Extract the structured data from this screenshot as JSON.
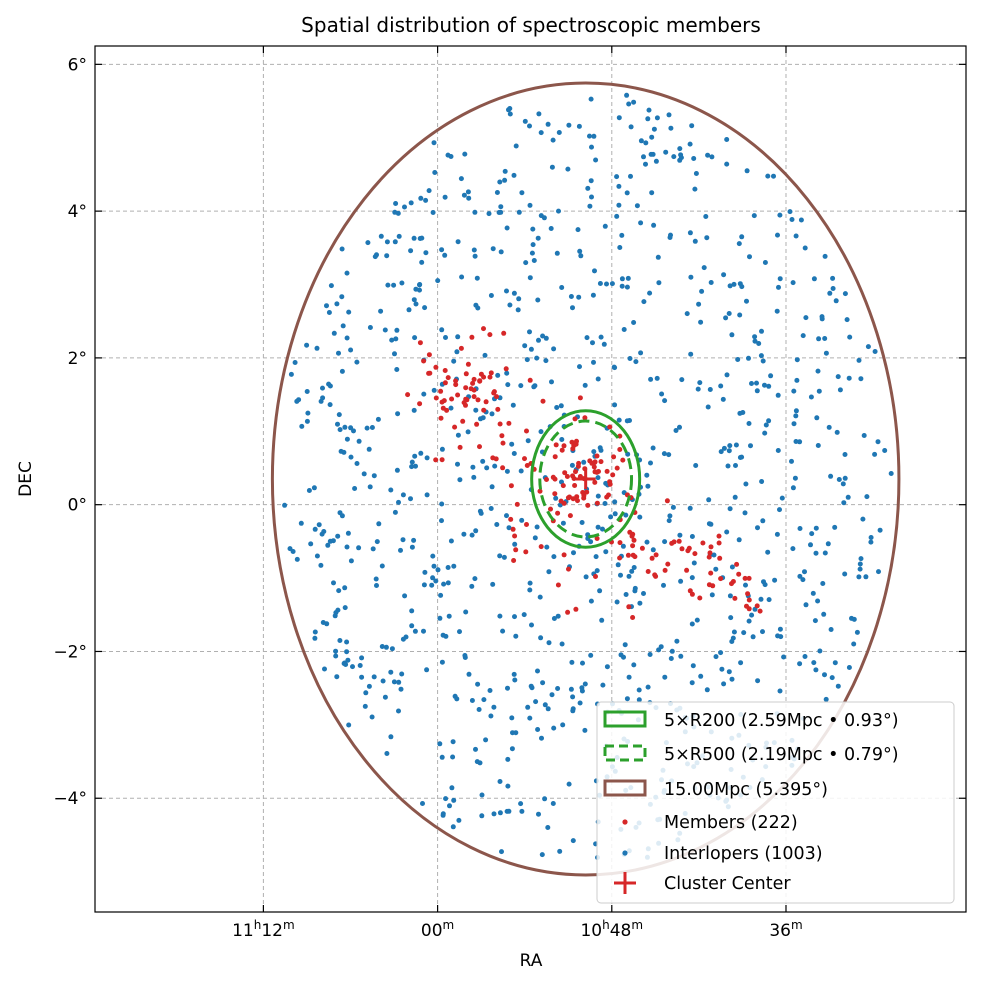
{
  "chart_data": {
    "type": "scatter",
    "title": "Spatial distribution of spectroscopic members",
    "xlabel": "RA",
    "ylabel": "DEC",
    "xlim_deg": [
      170.9,
      155.9
    ],
    "ylim_deg": [
      -5.55,
      6.25
    ],
    "x_ticks": [
      {
        "value": 168.0,
        "label": "11",
        "unit": "h",
        "minutes": "12",
        "munit": "m"
      },
      {
        "value": 165.0,
        "label": "00",
        "unit": "",
        "minutes": "",
        "munit": "m"
      },
      {
        "value": 162.0,
        "label": "10",
        "unit": "h",
        "minutes": "48",
        "munit": "m"
      },
      {
        "value": 159.0,
        "label": "36",
        "unit": "",
        "minutes": "",
        "munit": "m"
      }
    ],
    "y_ticks": [
      {
        "value": 6,
        "label": "6°"
      },
      {
        "value": 4,
        "label": "4°"
      },
      {
        "value": 2,
        "label": "2°"
      },
      {
        "value": 0,
        "label": "0°"
      },
      {
        "value": -2,
        "label": "−2°"
      },
      {
        "value": -4,
        "label": "−4°"
      }
    ],
    "grid": true,
    "cluster_center": {
      "ra": 162.45,
      "dec": 0.35
    },
    "circles": [
      {
        "name": "5×R200 (2.59Mpc • 0.93°)",
        "radius_deg": 0.93,
        "style": "solid",
        "color": "#2ca02c"
      },
      {
        "name": "5×R500 (2.19Mpc • 0.79°)",
        "radius_deg": 0.79,
        "style": "dashed",
        "color": "#2ca02c"
      },
      {
        "name": "15.00Mpc (5.395°)",
        "radius_deg": 5.395,
        "style": "solid",
        "color": "#8c564b"
      }
    ],
    "members": {
      "name": "Members (222)",
      "count": 222,
      "color": "#d62728"
    },
    "interlopers": {
      "name": "Interlopers (1003)",
      "count": 1003,
      "color": "#1f77b4"
    },
    "legend": {
      "placement": "bottom-right",
      "entries": [
        "5×R200 (2.59Mpc • 0.93°)",
        "5×R500 (2.19Mpc • 0.79°)",
        "15.00Mpc (5.395°)",
        "Members (222)",
        "Interlopers (1003)",
        "Cluster Center"
      ]
    }
  },
  "colors": {
    "members": "#d62728",
    "interlopers": "#1f77b4",
    "r200": "#2ca02c",
    "outer": "#8c564b"
  }
}
